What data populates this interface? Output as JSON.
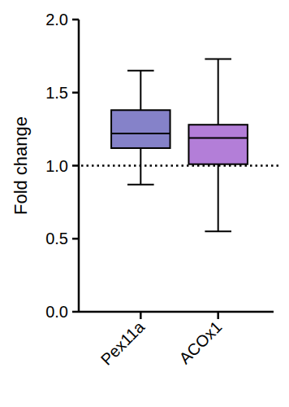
{
  "chart_data": {
    "type": "box",
    "y_label": "Fold change",
    "categories": [
      "Pex11a",
      "ACOx1"
    ],
    "boxes": [
      {
        "min": 0.87,
        "q1": 1.12,
        "median": 1.22,
        "q3": 1.38,
        "max": 1.65
      },
      {
        "min": 0.55,
        "q1": 1.01,
        "median": 1.19,
        "q3": 1.28,
        "max": 1.73
      }
    ],
    "colors": [
      "#8582c9",
      "#b37ed8"
    ],
    "reference_line": 1,
    "ylim": [
      0,
      2
    ],
    "yticks": [
      {
        "value": 0,
        "label": "0.0"
      },
      {
        "value": 0.5,
        "label": "0.5"
      },
      {
        "value": 1,
        "label": "1.0"
      },
      {
        "value": 1.5,
        "label": "1.5"
      },
      {
        "value": 2,
        "label": "2.0"
      }
    ],
    "grid": false
  }
}
